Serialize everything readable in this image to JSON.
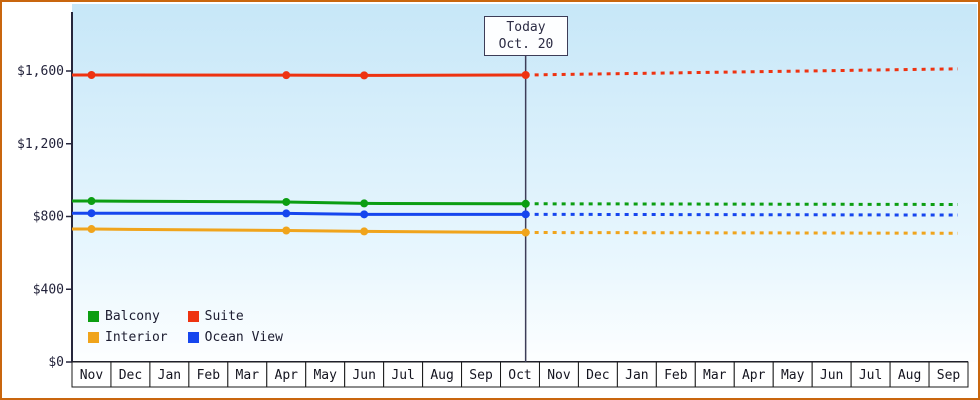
{
  "frame": {
    "border_color": "#c9660e",
    "background": "#ffffff"
  },
  "plot_style": {
    "bg_gradient_top": "#c7e7f8",
    "bg_gradient_mid": "#e9f7fe",
    "bg_gradient_bottom": "#fdfeff",
    "axis_color": "#26263c",
    "tick_label_color": "#22223a",
    "month_label_color": "#14141f",
    "cell_bg": "#ffffff",
    "cell_border": "#1a1a1a",
    "today_line_color": "#3d3d58",
    "today_box_border": "#3d3d58",
    "today_box_bg": "#fdfeff",
    "today_text_color": "#2c2c44"
  },
  "chart_data": {
    "type": "line",
    "x_axis": {
      "months": [
        "Nov",
        "Dec",
        "Jan",
        "Feb",
        "Mar",
        "Apr",
        "May",
        "Jun",
        "Jul",
        "Aug",
        "Sep",
        "Oct",
        "Nov",
        "Dec",
        "Jan",
        "Feb",
        "Mar",
        "Apr",
        "May",
        "Jun",
        "Jul",
        "Aug",
        "Sep"
      ]
    },
    "y_axis": {
      "ticks": [
        0,
        400,
        800,
        1200,
        1600
      ],
      "labels": [
        "$0",
        "$400",
        "$800",
        "$1,200",
        "$1,600"
      ],
      "max": 1600
    },
    "today": {
      "line1": "Today",
      "line2": "Oct. 20",
      "month_index": 11,
      "day_fraction": 0.645
    },
    "series": [
      {
        "name": "Balcony",
        "color": "#0c9e12",
        "solid_points": [
          [
            0,
            885
          ],
          [
            5,
            880
          ],
          [
            7,
            872
          ]
        ],
        "today_value": 870,
        "forecast_end_value": 866
      },
      {
        "name": "Suite",
        "color": "#ee3311",
        "solid_points": [
          [
            0,
            1578
          ],
          [
            5,
            1577
          ],
          [
            7,
            1576
          ]
        ],
        "today_value": 1578,
        "forecast_end_value": 1612
      },
      {
        "name": "Interior",
        "color": "#f0a41c",
        "solid_points": [
          [
            0,
            731
          ],
          [
            5,
            723
          ],
          [
            7,
            718
          ]
        ],
        "today_value": 712,
        "forecast_end_value": 708
      },
      {
        "name": "Ocean View",
        "color": "#1646ee",
        "solid_points": [
          [
            0,
            818
          ],
          [
            5,
            817
          ],
          [
            7,
            812
          ]
        ],
        "today_value": 812,
        "forecast_end_value": 808
      }
    ],
    "legend": {
      "order": [
        0,
        2,
        1,
        3
      ]
    }
  }
}
